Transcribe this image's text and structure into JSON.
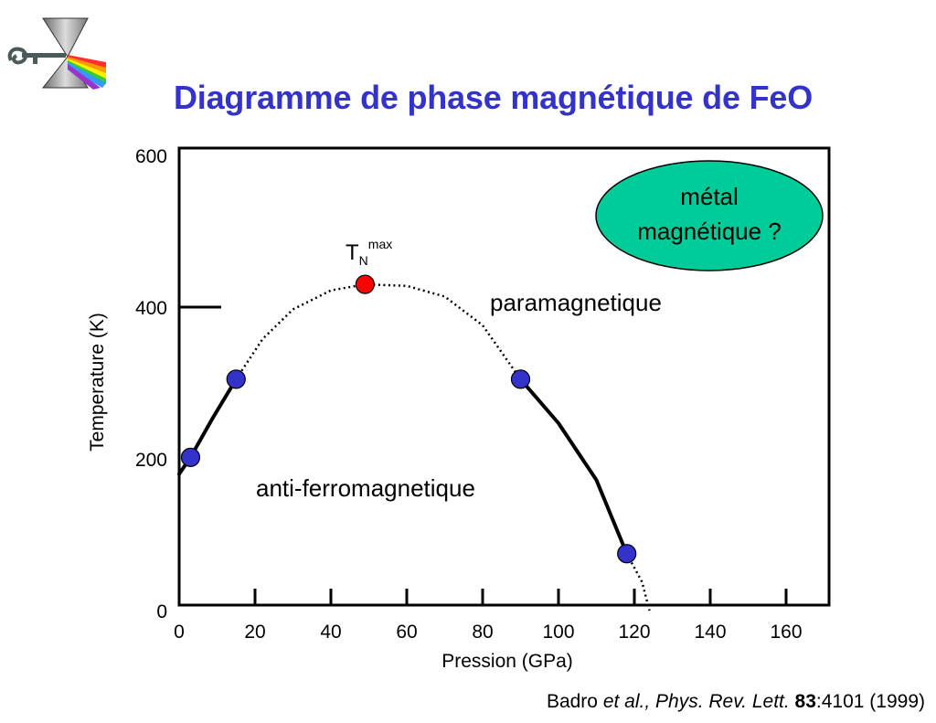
{
  "title": "Diagramme de phase magnétique de FeO",
  "citation": {
    "author": "Badro",
    "etal": "et al., Phys. Rev. Lett.",
    "volume": "83",
    "rest": ":4101 (1999)"
  },
  "chart_data": {
    "type": "scatter",
    "xlabel": "Pression (GPa)",
    "ylabel": "Temperature (K)",
    "xlim": [
      0,
      170
    ],
    "ylim": [
      0,
      600
    ],
    "x_ticks": [
      0,
      20,
      40,
      60,
      80,
      100,
      120,
      140,
      160
    ],
    "y_ticks": [
      0,
      200,
      400,
      600
    ],
    "grid": false,
    "series": [
      {
        "color": "#3333cc",
        "points": [
          [
            3,
            202
          ],
          [
            15,
            305
          ],
          [
            90,
            305
          ],
          [
            118,
            75
          ]
        ]
      },
      {
        "color": "#ff0000",
        "points": [
          [
            49,
            430
          ]
        ]
      }
    ],
    "phase_boundary_solid": [
      [
        [
          0,
          180
        ],
        [
          3,
          202
        ],
        [
          9,
          255
        ],
        [
          15,
          305
        ]
      ],
      [
        [
          90,
          305
        ],
        [
          100,
          247
        ],
        [
          110,
          172
        ],
        [
          118,
          75
        ]
      ]
    ],
    "phase_boundary_dotted": [
      [
        [
          15,
          305
        ],
        [
          22,
          358
        ],
        [
          30,
          397
        ],
        [
          40,
          422
        ],
        [
          49,
          430
        ],
        [
          60,
          428
        ],
        [
          70,
          414
        ],
        [
          80,
          376
        ],
        [
          90,
          305
        ]
      ],
      [
        [
          118,
          75
        ],
        [
          122,
          38
        ],
        [
          124,
          0
        ]
      ]
    ],
    "tn_max_label": {
      "main": "T",
      "sub": "N",
      "sup": "max"
    },
    "regions": {
      "paramagnetic": "paramagnetique",
      "antiferromagnetic": "anti-ferromagnetique",
      "metal_line1": "métal",
      "metal_line2": "magnétique ?"
    },
    "colors": {
      "title": "#3333cc",
      "blue_points": "#3333cc",
      "red_point": "#ff0000",
      "metal_ellipse": "#00cc99"
    }
  }
}
